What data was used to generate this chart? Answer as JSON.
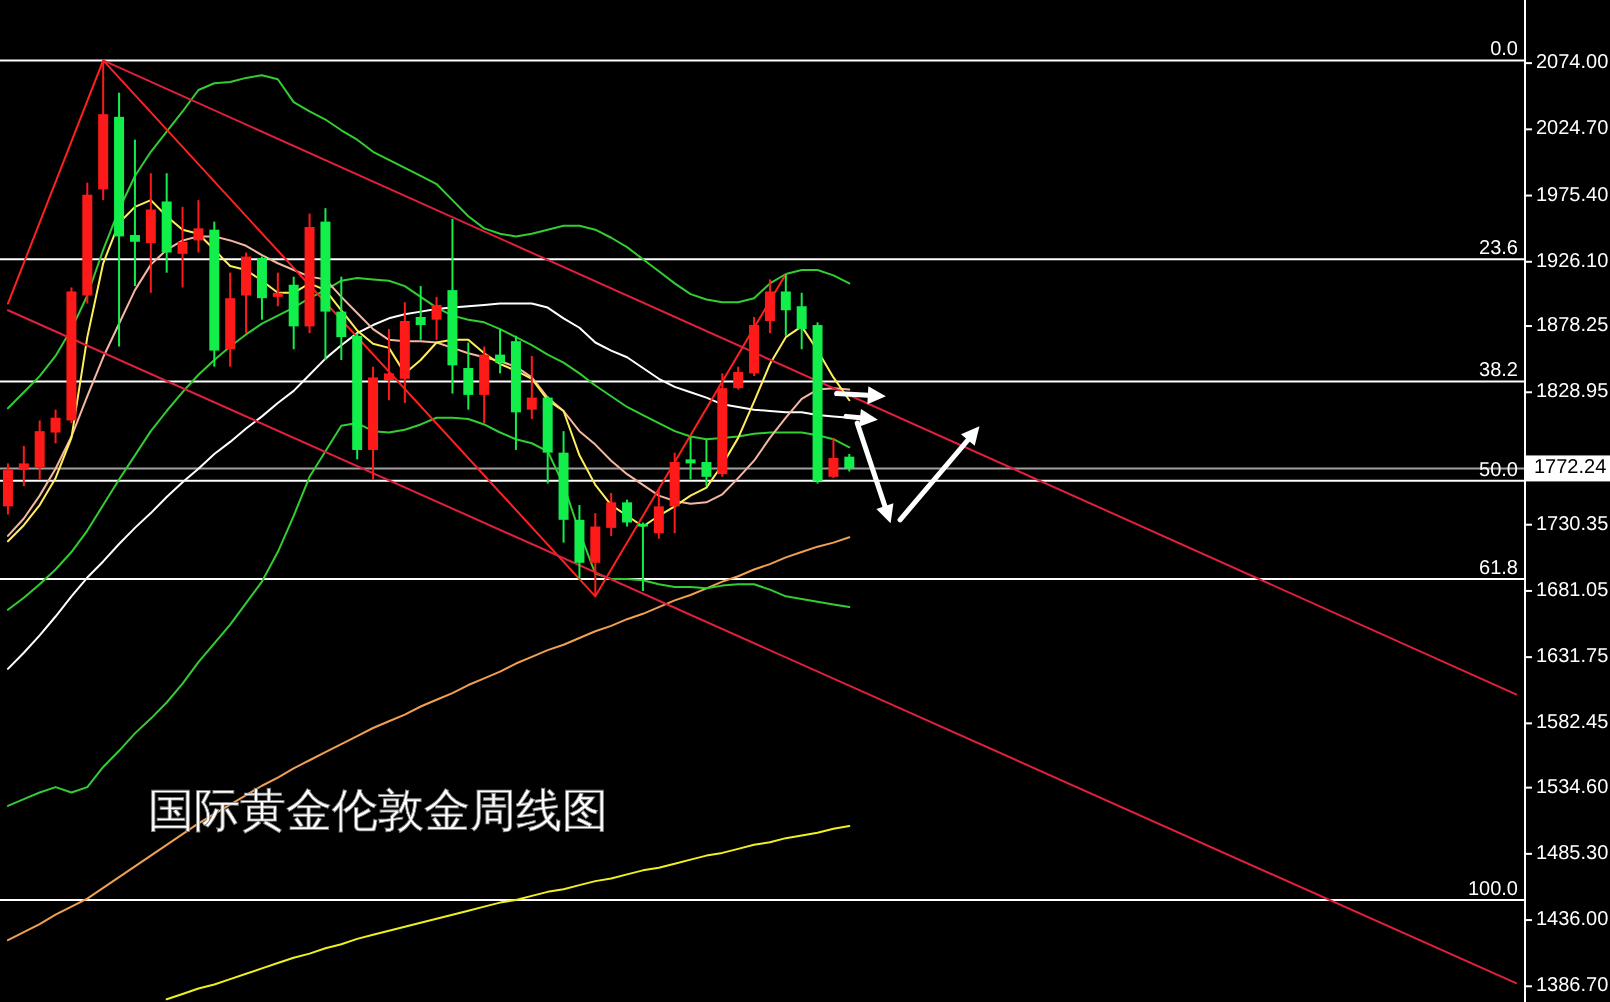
{
  "chart_data": {
    "type": "candlestick",
    "title": "国际黄金伦敦金周线图",
    "categories": [
      null,
      null,
      null,
      null,
      null,
      null,
      null,
      null,
      null,
      null,
      null,
      null,
      null,
      null,
      null,
      null,
      null,
      null,
      null,
      null,
      null,
      null,
      null,
      null,
      null,
      null,
      null,
      null,
      null,
      null,
      null,
      null,
      null,
      null,
      null,
      null,
      null,
      null,
      null,
      null,
      null,
      null,
      null,
      null,
      null,
      null,
      null,
      null,
      null,
      null,
      null,
      null,
      null,
      null,
      null,
      null,
      null,
      null,
      null,
      null,
      null,
      null,
      null,
      null,
      null,
      null,
      null,
      null,
      null,
      null,
      null,
      null,
      null,
      null,
      null,
      null,
      null,
      null,
      null,
      null,
      null,
      null,
      null,
      null,
      null,
      null,
      null,
      null,
      null,
      null,
      null,
      null,
      null,
      null,
      null,
      null
    ],
    "ohlc": [
      [
        1744,
        1776,
        1738,
        1771
      ],
      [
        1771,
        1789,
        1759,
        1776
      ],
      [
        1773,
        1808,
        1764,
        1800
      ],
      [
        1799,
        1816,
        1791,
        1810
      ],
      [
        1808,
        1907,
        1806,
        1904
      ],
      [
        1901,
        1985,
        1895,
        1976
      ],
      [
        1980,
        2076,
        1972,
        2036
      ],
      [
        2034,
        2052,
        1863,
        1945
      ],
      [
        1946,
        2017,
        1908,
        1941
      ],
      [
        1940,
        1992,
        1903,
        1965
      ],
      [
        1971,
        1992,
        1918,
        1933
      ],
      [
        1932,
        1967,
        1907,
        1941
      ],
      [
        1942,
        1972,
        1933,
        1951
      ],
      [
        1950,
        1956,
        1848,
        1860
      ],
      [
        1861,
        1918,
        1848,
        1899
      ],
      [
        1901,
        1933,
        1873,
        1930
      ],
      [
        1929,
        1930,
        1883,
        1899
      ],
      [
        1900,
        1918,
        1893,
        1903
      ],
      [
        1909,
        1915,
        1861,
        1878
      ],
      [
        1878,
        1962,
        1873,
        1952
      ],
      [
        1956,
        1966,
        1853,
        1889
      ],
      [
        1889,
        1915,
        1853,
        1870
      ],
      [
        1871,
        1873,
        1779,
        1786
      ],
      [
        1786,
        1848,
        1764,
        1840
      ],
      [
        1838,
        1876,
        1823,
        1843
      ],
      [
        1839,
        1896,
        1821,
        1882
      ],
      [
        1885,
        1908,
        1868,
        1879
      ],
      [
        1883,
        1900,
        1868,
        1894
      ],
      [
        1905,
        1958,
        1828,
        1849
      ],
      [
        1847,
        1866,
        1816,
        1827
      ],
      [
        1827,
        1863,
        1806,
        1857
      ],
      [
        1857,
        1876,
        1843,
        1851
      ],
      [
        1867,
        1871,
        1786,
        1814
      ],
      [
        1816,
        1856,
        1809,
        1825
      ],
      [
        1825,
        1826,
        1761,
        1784
      ],
      [
        1784,
        1800,
        1717,
        1734
      ],
      [
        1734,
        1745,
        1690,
        1702
      ],
      [
        1702,
        1739,
        1677,
        1729
      ],
      [
        1728,
        1754,
        1722,
        1747
      ],
      [
        1747,
        1749,
        1729,
        1732
      ],
      [
        1731,
        1732,
        1681,
        1729
      ],
      [
        1724,
        1758,
        1720,
        1744
      ],
      [
        1744,
        1784,
        1724,
        1777
      ],
      [
        1779,
        1796,
        1764,
        1776
      ],
      [
        1777,
        1794,
        1759,
        1766
      ],
      [
        1768,
        1843,
        1766,
        1832
      ],
      [
        1832,
        1848,
        1831,
        1844
      ],
      [
        1843,
        1885,
        1841,
        1879
      ],
      [
        1882,
        1913,
        1873,
        1904
      ],
      [
        1904,
        1917,
        1871,
        1890
      ],
      [
        1893,
        1903,
        1861,
        1876
      ],
      [
        1879,
        1881,
        1761,
        1763
      ],
      [
        1766,
        1795,
        1765,
        1780
      ],
      [
        1781,
        1783,
        1770,
        1772.24
      ],
      null,
      null,
      null,
      null,
      null,
      null,
      null,
      null,
      null,
      null,
      null,
      null,
      null,
      null,
      null,
      null,
      null,
      null,
      null,
      null,
      null,
      null,
      null,
      null,
      null,
      null,
      null,
      null,
      null,
      null,
      null,
      null,
      null,
      null,
      null,
      null,
      null,
      null,
      null,
      null,
      null,
      null
    ],
    "colors": [
      "#ff1a1a",
      "#ff1a1a",
      "#ff1a1a",
      "#ff1a1a",
      "#ff1a1a",
      "#ff1a1a",
      "#ff1a1a",
      "#12ee4a",
      "#12ee4a",
      "#ff1a1a",
      "#12ee4a",
      "#ff1a1a",
      "#ff1a1a",
      "#12ee4a",
      "#ff1a1a",
      "#ff1a1a",
      "#12ee4a",
      "#ff1a1a",
      "#12ee4a",
      "#ff1a1a",
      "#12ee4a",
      "#12ee4a",
      "#12ee4a",
      "#ff1a1a",
      "#ff1a1a",
      "#ff1a1a",
      "#12ee4a",
      "#ff1a1a",
      "#12ee4a",
      "#12ee4a",
      "#ff1a1a",
      "#12ee4a",
      "#12ee4a",
      "#ff1a1a",
      "#12ee4a",
      "#12ee4a",
      "#12ee4a",
      "#ff1a1a",
      "#ff1a1a",
      "#12ee4a",
      "#12ee4a",
      "#ff1a1a",
      "#ff1a1a",
      "#12ee4a",
      "#12ee4a",
      "#ff1a1a",
      "#ff1a1a",
      "#ff1a1a",
      "#ff1a1a",
      "#12ee4a",
      "#12ee4a",
      "#12ee4a",
      "#ff1a1a",
      "#12ee4a",
      null,
      null,
      null,
      null,
      null,
      null,
      null,
      null,
      null,
      null,
      null,
      null,
      null,
      null,
      null,
      null,
      null,
      null,
      null,
      null,
      null,
      null,
      null,
      null,
      null,
      null,
      null,
      null,
      null,
      null,
      null,
      null,
      null,
      null,
      null,
      null,
      null,
      null,
      null,
      null,
      null,
      null
    ],
    "series": [
      {
        "type": "line",
        "color": "#f0f020",
        "values": [
          null,
          null,
          null,
          null,
          null,
          null,
          null,
          null,
          null,
          null,
          1377,
          1381,
          1385,
          1388,
          1392,
          1396,
          1400,
          1404,
          1408,
          1411,
          1415,
          1418,
          1422,
          1425,
          1428,
          1431,
          1434,
          1437,
          1440,
          1443,
          1446,
          1449,
          1451,
          1454,
          1457,
          1459,
          1462,
          1465,
          1467,
          1470,
          1473,
          1475,
          1478,
          1481,
          1484,
          1486,
          1489,
          1492,
          1494,
          1497,
          1499,
          1501,
          1504,
          1506,
          null,
          null,
          null,
          null,
          null,
          null,
          null,
          null,
          null,
          null,
          null,
          null,
          null,
          null,
          null,
          null,
          null,
          null,
          null,
          null,
          null,
          null,
          null,
          null,
          null,
          null,
          null,
          null,
          null,
          null,
          null,
          null,
          null,
          null,
          null,
          null,
          null,
          null,
          null,
          null,
          null,
          null
        ]
      },
      {
        "type": "line",
        "color": "#f0a050",
        "values": [
          1421,
          1427,
          1433,
          1440,
          1446,
          1452,
          1460,
          1468,
          1476,
          1484,
          1492,
          1500,
          1508,
          1515,
          1522,
          1529,
          1536,
          1542,
          1549,
          1555,
          1561,
          1567,
          1573,
          1579,
          1584,
          1589,
          1595,
          1600,
          1605,
          1611,
          1616,
          1621,
          1627,
          1632,
          1637,
          1641,
          1646,
          1651,
          1655,
          1660,
          1664,
          1669,
          1674,
          1678,
          1683,
          1688,
          1692,
          1697,
          1701,
          1706,
          1710,
          1714,
          1717,
          1721,
          null,
          null,
          null,
          null,
          null,
          null,
          null,
          null,
          null,
          null,
          null,
          null,
          null,
          null,
          null,
          null,
          null,
          null,
          null,
          null,
          null,
          null,
          null,
          null,
          null,
          null,
          null,
          null,
          null,
          null,
          null,
          null,
          null,
          null,
          null,
          null,
          null,
          null,
          null,
          null,
          null,
          null
        ]
      },
      {
        "type": "line",
        "color": "#32cd32",
        "values": [
          1817,
          1829,
          1841,
          1856,
          1876,
          1901,
          1935,
          1965,
          1990,
          2008,
          2023,
          2038,
          2054,
          2059,
          2060,
          2063,
          2065,
          2062,
          2045,
          2038,
          2032,
          2024,
          2017,
          2008,
          2002,
          1996,
          1990,
          1984,
          1972,
          1960,
          1951,
          1947,
          1945,
          1947,
          1950,
          1953,
          1953,
          1950,
          1944,
          1937,
          1928,
          1919,
          1910,
          1902,
          1898,
          1896,
          1896,
          1899,
          1910,
          1917,
          1920,
          1920,
          1916,
          1910,
          null,
          null,
          null,
          null,
          null,
          null,
          null,
          null,
          null,
          null,
          null,
          null,
          null,
          null,
          null,
          null,
          null,
          null,
          null,
          null,
          null,
          null,
          null,
          null,
          null,
          null,
          null,
          null,
          null,
          null,
          null,
          null,
          null,
          null,
          null,
          null,
          null,
          null,
          null,
          null,
          null,
          null
        ]
      },
      {
        "type": "line",
        "color": "#32cd32",
        "values": [
          1667,
          1676,
          1686,
          1697,
          1710,
          1726,
          1745,
          1764,
          1782,
          1800,
          1815,
          1829,
          1842,
          1853,
          1863,
          1872,
          1880,
          1886,
          1892,
          1899,
          1905,
          1912,
          1914,
          1913,
          1912,
          1908,
          1900,
          1892,
          1886,
          1883,
          1881,
          1876,
          1870,
          1864,
          1857,
          1851,
          1843,
          1834,
          1826,
          1818,
          1812,
          1806,
          1800,
          1796,
          1794,
          1795,
          1796,
          1798,
          1799,
          1799,
          1799,
          1797,
          1794,
          1788,
          null,
          null,
          null,
          null,
          null,
          null,
          null,
          null,
          null,
          null,
          null,
          null,
          null,
          null,
          null,
          null,
          null,
          null,
          null,
          null,
          null,
          null,
          null,
          null,
          null,
          null,
          null,
          null,
          null,
          null,
          null,
          null,
          null,
          null,
          null,
          null,
          null,
          null,
          null,
          null,
          null,
          null
        ]
      },
      {
        "type": "line",
        "color": "#32cd32",
        "values": [
          1521,
          1526,
          1531,
          1535,
          1531,
          1535,
          1550,
          1562,
          1575,
          1586,
          1598,
          1612,
          1628,
          1642,
          1656,
          1672,
          1688,
          1710,
          1737,
          1766,
          1785,
          1804,
          1806,
          1800,
          1799,
          1801,
          1805,
          1810,
          1810,
          1809,
          1805,
          1799,
          1794,
          1791,
          1785,
          1760,
          1725,
          1694,
          1690,
          1690,
          1689,
          1686,
          1684,
          1684,
          1683,
          1685,
          1686,
          1686,
          1682,
          1677,
          1675,
          1673,
          1671,
          1669,
          null,
          null,
          null,
          null,
          null,
          null,
          null,
          null,
          null,
          null,
          null,
          null,
          null,
          null,
          null,
          null,
          null,
          null,
          null,
          null,
          null,
          null,
          null,
          null,
          null,
          null,
          null,
          null,
          null,
          null,
          null,
          null,
          null,
          null,
          null,
          null,
          null,
          null,
          null,
          null,
          null,
          null
        ]
      },
      {
        "type": "line",
        "color": "#ffffff",
        "values": [
          1623,
          1635,
          1648,
          1662,
          1677,
          1691,
          1703,
          1716,
          1728,
          1739,
          1751,
          1762,
          1772,
          1783,
          1792,
          1802,
          1811,
          1821,
          1830,
          1842,
          1854,
          1864,
          1873,
          1879,
          1884,
          1887,
          1889,
          1891,
          1892,
          1893,
          1894,
          1895,
          1895,
          1895,
          1892,
          1884,
          1877,
          1866,
          1860,
          1855,
          1847,
          1839,
          1833,
          1829,
          1825,
          1820,
          1818,
          1816,
          1815,
          1814,
          1814,
          1812,
          1811,
          1810,
          null,
          null,
          null,
          null,
          null,
          null,
          null,
          null,
          null,
          null,
          null,
          null,
          null,
          null,
          null,
          null,
          null,
          null,
          null,
          null,
          null,
          null,
          null,
          null,
          null,
          null,
          null,
          null,
          null,
          null,
          null,
          null,
          null,
          null,
          null,
          null,
          null,
          null,
          null,
          null,
          null,
          null
        ]
      },
      {
        "type": "line",
        "color": "#f5b7a0",
        "values": [
          1722,
          1735,
          1752,
          1772,
          1796,
          1826,
          1855,
          1880,
          1905,
          1924,
          1935,
          1942,
          1945,
          1945,
          1942,
          1938,
          1931,
          1925,
          1920,
          1915,
          1913,
          1900,
          1888,
          1876,
          1868,
          1867,
          1867,
          1866,
          1862,
          1858,
          1855,
          1852,
          1848,
          1840,
          1825,
          1815,
          1800,
          1790,
          1778,
          1768,
          1760,
          1752,
          1748,
          1746,
          1747,
          1753,
          1765,
          1778,
          1795,
          1810,
          1824,
          1831,
          1832,
          1831,
          null,
          null,
          null,
          null,
          null,
          null,
          null,
          null,
          null,
          null,
          null,
          null,
          null,
          null,
          null,
          null,
          null,
          null,
          null,
          null,
          null,
          null,
          null,
          null,
          null,
          null,
          null,
          null,
          null,
          null,
          null,
          null,
          null,
          null,
          null,
          null,
          null,
          null,
          null,
          null,
          null,
          null
        ]
      },
      {
        "type": "line",
        "color": "#ffee58",
        "values": [
          1718,
          1730,
          1745,
          1765,
          1795,
          1870,
          1925,
          1955,
          1967,
          1972,
          1960,
          1950,
          1947,
          1935,
          1923,
          1920,
          1912,
          1903,
          1903,
          1910,
          1905,
          1890,
          1875,
          1865,
          1862,
          1843,
          1853,
          1866,
          1868,
          1868,
          1858,
          1850,
          1845,
          1839,
          1823,
          1815,
          1782,
          1760,
          1745,
          1737,
          1729,
          1737,
          1744,
          1752,
          1758,
          1775,
          1795,
          1822,
          1850,
          1870,
          1878,
          1860,
          1840,
          1823,
          null,
          null,
          null,
          null,
          null,
          null,
          null,
          null,
          null,
          null,
          null,
          null,
          null,
          null,
          null,
          null,
          null,
          null,
          null,
          null,
          null,
          null,
          null,
          null,
          null,
          null,
          null,
          null,
          null,
          null,
          null,
          null,
          null,
          null,
          null,
          null,
          null,
          null,
          null,
          null,
          null,
          null
        ]
      },
      {
        "type": "line",
        "color": "#ff2020",
        "values": [
          1895,
          null,
          null,
          null,
          null,
          null,
          2076,
          null,
          null,
          null,
          null,
          null,
          null,
          null,
          null,
          null,
          null,
          null,
          null,
          null,
          null,
          null,
          null,
          null,
          null,
          null,
          null,
          null,
          null,
          null,
          null,
          null,
          null,
          null,
          null,
          null,
          null,
          1677,
          null,
          null,
          null,
          null,
          null,
          null,
          null,
          null,
          null,
          null,
          null,
          1917,
          null,
          null,
          null,
          null,
          null,
          null,
          null,
          null,
          null,
          null,
          null,
          null,
          null,
          null,
          null,
          null,
          null,
          null,
          null,
          null,
          null,
          null,
          null,
          null,
          null,
          null,
          null,
          null,
          null,
          null,
          null,
          null,
          null,
          null,
          null,
          null,
          null,
          null,
          null,
          null,
          null,
          null,
          null,
          null,
          null,
          null
        ]
      },
      {
        "type": "line",
        "color": "#e0203c",
        "values": [
          null,
          null,
          null,
          null,
          null,
          null,
          2076,
          null,
          null,
          null,
          null,
          null,
          null,
          null,
          null,
          null,
          null,
          null,
          null,
          null,
          null,
          null,
          null,
          null,
          null,
          null,
          null,
          null,
          null,
          null,
          null,
          null,
          null,
          null,
          null,
          null,
          null,
          null,
          null,
          null,
          null,
          null,
          null,
          null,
          null,
          null,
          null,
          null,
          null,
          null,
          null,
          null,
          null,
          null,
          null,
          null,
          null,
          null,
          null,
          null,
          null,
          null,
          null,
          null,
          null,
          null,
          null,
          null,
          null,
          null,
          null,
          null,
          null,
          null,
          null,
          null,
          null,
          null,
          null,
          null,
          null,
          null,
          null,
          null,
          null,
          null,
          null,
          null,
          null,
          null,
          null,
          null,
          null,
          null,
          null,
          1604
        ]
      },
      {
        "type": "line",
        "color": "#e0203c",
        "values": [
          1890,
          null,
          null,
          null,
          null,
          null,
          null,
          null,
          null,
          null,
          null,
          null,
          null,
          null,
          null,
          null,
          null,
          null,
          null,
          null,
          null,
          null,
          null,
          null,
          null,
          null,
          null,
          null,
          null,
          null,
          null,
          null,
          null,
          null,
          null,
          null,
          null,
          null,
          null,
          null,
          null,
          null,
          null,
          null,
          null,
          null,
          null,
          null,
          null,
          null,
          null,
          null,
          null,
          null,
          null,
          null,
          null,
          null,
          null,
          null,
          null,
          null,
          null,
          null,
          null,
          null,
          null,
          null,
          null,
          null,
          null,
          null,
          null,
          null,
          null,
          null,
          null,
          null,
          null,
          null,
          null,
          null,
          null,
          null,
          null,
          null,
          null,
          null,
          null,
          null,
          null,
          null,
          null,
          null,
          null,
          1389
        ]
      }
    ],
    "ylim": [
      1375,
      2121
    ],
    "yticks": [
      {
        "value": 2074,
        "label": "2074.00"
      },
      {
        "value": 2024.7,
        "label": "2024.70"
      },
      {
        "value": 1975.4,
        "label": "1975.40"
      },
      {
        "value": 1926.1,
        "label": "1926.10"
      },
      {
        "value": 1878.25,
        "label": "1878.25"
      },
      {
        "value": 1828.95,
        "label": "1828.95"
      },
      {
        "value": 1779.65,
        "label": null
      },
      {
        "value": 1730.35,
        "label": "1730.35"
      },
      {
        "value": 1681.05,
        "label": "1681.05"
      },
      {
        "value": 1631.75,
        "label": "1631.75"
      },
      {
        "value": 1582.45,
        "label": "1582.45"
      },
      {
        "value": 1534.6,
        "label": "1534.60"
      },
      {
        "value": 1485.3,
        "label": "1485.30"
      },
      {
        "value": 1436,
        "label": "1436.00"
      },
      {
        "value": 1386.7,
        "label": "1386.70"
      }
    ],
    "ref_lines": [
      {
        "axis": "y",
        "value": 2076,
        "color": "#ffffff"
      },
      {
        "axis": "y",
        "value": 1928,
        "color": "#ffffff"
      },
      {
        "axis": "y",
        "value": 1837,
        "color": "#ffffff"
      },
      {
        "axis": "y",
        "value": 1763,
        "color": "#ffffff"
      },
      {
        "axis": "y",
        "value": 1690,
        "color": "#ffffff"
      },
      {
        "axis": "y",
        "value": 1451,
        "color": "#ffffff"
      },
      {
        "axis": "y",
        "value": 1772.24,
        "label": "1772.24",
        "color": "#a0a0a0"
      }
    ],
    "annotations": [
      {
        "text": "0.0",
        "y": 2076
      },
      {
        "text": "23.6",
        "y": 1928
      },
      {
        "text": "38.2",
        "y": 1837
      },
      {
        "text": "50.0",
        "y": 1763
      },
      {
        "text": "61.8",
        "y": 1690
      },
      {
        "text": "100.0",
        "y": 1451
      }
    ],
    "tick_labels": "y"
  }
}
